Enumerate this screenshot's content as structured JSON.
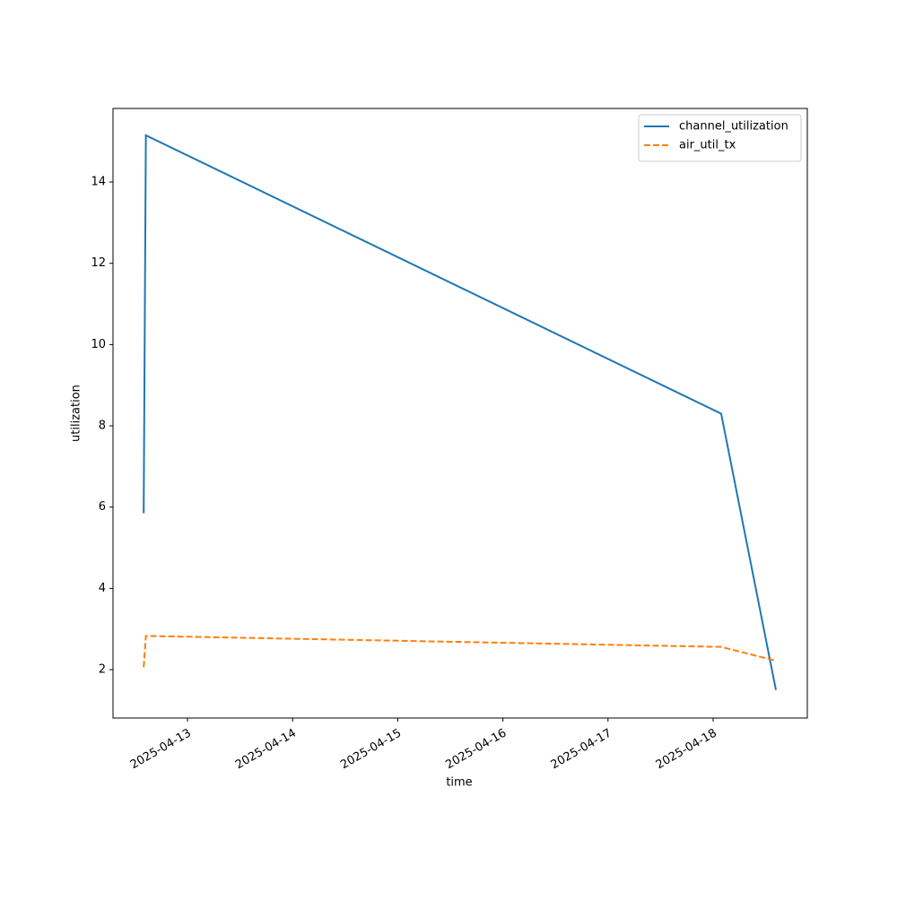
{
  "chart_data": {
    "type": "line",
    "xlabel": "time",
    "ylabel": "utilization",
    "x": [
      "2025-04-12 14:00",
      "2025-04-12 14:30",
      "2025-04-18 01:50",
      "2025-04-18 14:20"
    ],
    "series": [
      {
        "name": "channel_utilization",
        "color": "#1f77b4",
        "linestyle": "solid",
        "values": [
          5.85,
          15.15,
          8.3,
          1.5
        ]
      },
      {
        "name": "air_util_tx",
        "color": "#ff7f0e",
        "linestyle": "dashed",
        "values": [
          2.06,
          2.83,
          2.56,
          2.22
        ]
      }
    ],
    "xlim": [
      "2025-04-12 07:00",
      "2025-04-18 21:30"
    ],
    "xticks": [
      "2025-04-13",
      "2025-04-14",
      "2025-04-15",
      "2025-04-16",
      "2025-04-17",
      "2025-04-18"
    ],
    "ylim": [
      0.81,
      15.81
    ],
    "yticks": [
      2,
      4,
      6,
      8,
      10,
      12,
      14
    ],
    "legend": "upper right",
    "grid": false
  }
}
